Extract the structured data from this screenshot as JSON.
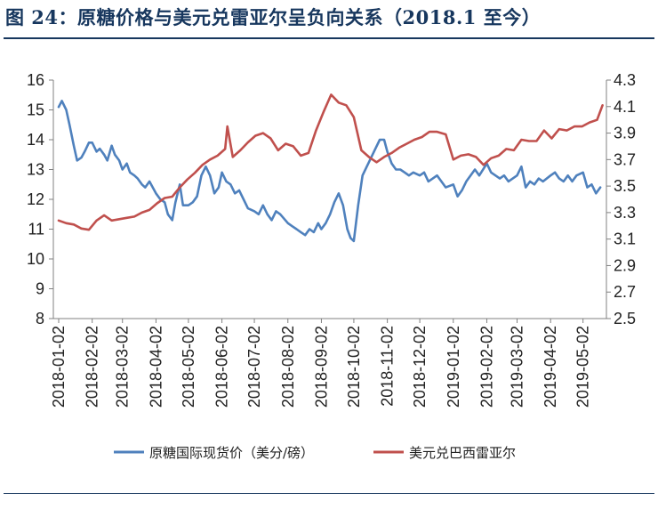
{
  "title": "图 24：原糖价格与美元兑雷亚尔呈负向关系（2018.1 至今）",
  "source_note": "",
  "colors": {
    "title": "#17375e",
    "sugar": "#4f81bd",
    "brl": "#c0504d",
    "axis": "#808080"
  },
  "chart_data": {
    "type": "line",
    "title": "",
    "x_tick_labels": [
      "2018-01-02",
      "2018-02-02",
      "2018-03-02",
      "2018-04-02",
      "2018-05-02",
      "2018-06-02",
      "2018-07-02",
      "2018-08-02",
      "2018-09-02",
      "2018-10-02",
      "2018-11-02",
      "2018-12-02",
      "2019-01-02",
      "2019-02-02",
      "2019-03-02",
      "2019-04-02",
      "2019-05-02"
    ],
    "y_left": {
      "min": 8,
      "max": 16,
      "ticks": [
        "8",
        "9",
        "10",
        "11",
        "12",
        "13",
        "14",
        "15",
        "16"
      ]
    },
    "y_right": {
      "min": 2.5,
      "max": 4.3,
      "ticks": [
        "2.5",
        "2.7",
        "2.9",
        "3.1",
        "3.3",
        "3.5",
        "3.7",
        "3.9",
        "4.1",
        "4.3"
      ]
    },
    "grid": false,
    "legend_position": "bottom",
    "series": [
      {
        "name": "原糖国际现货价（美分/磅）",
        "axis": "left",
        "x": [
          "2018-01-02",
          "2018-01-05",
          "2018-01-09",
          "2018-01-12",
          "2018-01-16",
          "2018-01-19",
          "2018-01-23",
          "2018-01-26",
          "2018-01-30",
          "2018-02-02",
          "2018-02-06",
          "2018-02-09",
          "2018-02-13",
          "2018-02-16",
          "2018-02-20",
          "2018-02-23",
          "2018-02-27",
          "2018-03-02",
          "2018-03-06",
          "2018-03-09",
          "2018-03-13",
          "2018-03-16",
          "2018-03-20",
          "2018-03-23",
          "2018-03-27",
          "2018-04-02",
          "2018-04-06",
          "2018-04-10",
          "2018-04-13",
          "2018-04-17",
          "2018-04-20",
          "2018-04-24",
          "2018-04-27",
          "2018-05-02",
          "2018-05-06",
          "2018-05-10",
          "2018-05-14",
          "2018-05-18",
          "2018-05-22",
          "2018-05-26",
          "2018-05-30",
          "2018-06-02",
          "2018-06-06",
          "2018-06-10",
          "2018-06-14",
          "2018-06-18",
          "2018-06-22",
          "2018-06-26",
          "2018-07-02",
          "2018-07-06",
          "2018-07-10",
          "2018-07-14",
          "2018-07-18",
          "2018-07-22",
          "2018-07-26",
          "2018-08-02",
          "2018-08-06",
          "2018-08-10",
          "2018-08-14",
          "2018-08-18",
          "2018-08-22",
          "2018-08-26",
          "2018-08-30",
          "2018-09-02",
          "2018-09-06",
          "2018-09-10",
          "2018-09-14",
          "2018-09-18",
          "2018-09-22",
          "2018-09-26",
          "2018-09-29",
          "2018-10-02",
          "2018-10-06",
          "2018-10-10",
          "2018-10-14",
          "2018-10-18",
          "2018-10-22",
          "2018-10-26",
          "2018-10-30",
          "2018-11-02",
          "2018-11-06",
          "2018-11-10",
          "2018-11-14",
          "2018-11-18",
          "2018-11-22",
          "2018-11-26",
          "2018-12-02",
          "2018-12-06",
          "2018-12-10",
          "2018-12-14",
          "2018-12-18",
          "2018-12-22",
          "2018-12-26",
          "2019-01-02",
          "2019-01-06",
          "2019-01-10",
          "2019-01-14",
          "2019-01-18",
          "2019-01-22",
          "2019-01-26",
          "2019-02-02",
          "2019-02-06",
          "2019-02-10",
          "2019-02-14",
          "2019-02-18",
          "2019-02-22",
          "2019-03-02",
          "2019-03-06",
          "2019-03-10",
          "2019-03-14",
          "2019-03-18",
          "2019-03-22",
          "2019-03-26",
          "2019-04-02",
          "2019-04-06",
          "2019-04-10",
          "2019-04-14",
          "2019-04-18",
          "2019-04-22",
          "2019-04-26",
          "2019-05-02",
          "2019-05-06",
          "2019-05-10",
          "2019-05-14",
          "2019-05-18"
        ],
        "values": [
          15.1,
          15.3,
          15.0,
          14.5,
          13.8,
          13.3,
          13.4,
          13.6,
          13.9,
          13.9,
          13.6,
          13.7,
          13.5,
          13.3,
          13.8,
          13.5,
          13.3,
          13.0,
          13.2,
          12.9,
          12.8,
          12.7,
          12.5,
          12.4,
          12.6,
          12.2,
          12.0,
          11.9,
          11.5,
          11.3,
          11.9,
          12.5,
          11.8,
          11.8,
          11.9,
          12.1,
          12.8,
          13.1,
          12.8,
          12.2,
          12.4,
          12.9,
          12.6,
          12.5,
          12.2,
          12.3,
          12.0,
          11.7,
          11.6,
          11.5,
          11.8,
          11.5,
          11.3,
          11.6,
          11.5,
          11.2,
          11.1,
          11.0,
          10.9,
          10.8,
          11.0,
          10.9,
          11.2,
          11.0,
          11.2,
          11.5,
          11.9,
          12.2,
          11.8,
          11.0,
          10.7,
          10.6,
          11.8,
          12.8,
          13.1,
          13.4,
          13.7,
          14.0,
          14.0,
          13.6,
          13.2,
          13.0,
          13.0,
          12.9,
          12.8,
          12.9,
          12.8,
          12.9,
          12.6,
          12.7,
          12.8,
          12.6,
          12.4,
          12.5,
          12.1,
          12.3,
          12.6,
          12.8,
          13.0,
          12.8,
          13.2,
          12.9,
          12.8,
          12.7,
          12.8,
          12.6,
          12.8,
          13.1,
          12.4,
          12.6,
          12.5,
          12.7,
          12.6,
          12.8,
          12.9,
          12.7,
          12.6,
          12.8,
          12.6,
          12.8,
          12.9,
          12.4,
          12.5,
          12.2,
          12.4
        ]
      },
      {
        "name": "美元兑巴西雷亚尔",
        "axis": "right",
        "x": [
          "2018-01-02",
          "2018-01-09",
          "2018-01-16",
          "2018-01-23",
          "2018-01-30",
          "2018-02-06",
          "2018-02-13",
          "2018-02-20",
          "2018-02-27",
          "2018-03-06",
          "2018-03-13",
          "2018-03-20",
          "2018-03-27",
          "2018-04-03",
          "2018-04-10",
          "2018-04-17",
          "2018-04-24",
          "2018-05-01",
          "2018-05-08",
          "2018-05-15",
          "2018-05-22",
          "2018-05-29",
          "2018-06-05",
          "2018-06-07",
          "2018-06-12",
          "2018-06-19",
          "2018-06-26",
          "2018-07-03",
          "2018-07-10",
          "2018-07-17",
          "2018-07-24",
          "2018-07-31",
          "2018-08-07",
          "2018-08-14",
          "2018-08-21",
          "2018-08-28",
          "2018-09-04",
          "2018-09-11",
          "2018-09-18",
          "2018-09-25",
          "2018-10-02",
          "2018-10-09",
          "2018-10-16",
          "2018-10-23",
          "2018-10-30",
          "2018-11-06",
          "2018-11-13",
          "2018-11-20",
          "2018-11-27",
          "2018-12-04",
          "2018-12-11",
          "2018-12-18",
          "2018-12-26",
          "2019-01-02",
          "2019-01-09",
          "2019-01-16",
          "2019-01-23",
          "2019-01-30",
          "2019-02-06",
          "2019-02-13",
          "2019-02-20",
          "2019-02-27",
          "2019-03-06",
          "2019-03-13",
          "2019-03-20",
          "2019-03-27",
          "2019-04-03",
          "2019-04-10",
          "2019-04-17",
          "2019-04-24",
          "2019-05-01",
          "2019-05-08",
          "2019-05-15",
          "2019-05-20"
        ],
        "values": [
          3.24,
          3.22,
          3.21,
          3.18,
          3.17,
          3.24,
          3.28,
          3.24,
          3.25,
          3.26,
          3.27,
          3.3,
          3.32,
          3.37,
          3.41,
          3.42,
          3.49,
          3.55,
          3.6,
          3.66,
          3.7,
          3.73,
          3.78,
          3.95,
          3.72,
          3.77,
          3.83,
          3.88,
          3.9,
          3.86,
          3.77,
          3.82,
          3.8,
          3.73,
          3.75,
          3.92,
          4.06,
          4.19,
          4.13,
          4.11,
          4.02,
          3.77,
          3.72,
          3.68,
          3.72,
          3.75,
          3.79,
          3.82,
          3.85,
          3.87,
          3.91,
          3.91,
          3.89,
          3.7,
          3.73,
          3.74,
          3.72,
          3.66,
          3.71,
          3.73,
          3.78,
          3.77,
          3.85,
          3.84,
          3.84,
          3.92,
          3.86,
          3.93,
          3.92,
          3.95,
          3.95,
          3.98,
          4.0,
          4.11
        ]
      }
    ]
  }
}
